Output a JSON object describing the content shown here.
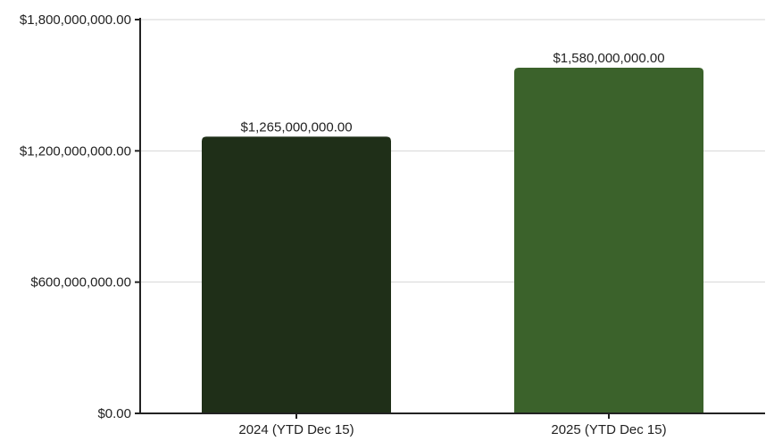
{
  "chart_data": {
    "type": "bar",
    "categories": [
      "2024 (YTD Dec 15)",
      "2025 (YTD Dec 15)"
    ],
    "values": [
      1265000000,
      1580000000
    ],
    "value_labels": [
      "$1,265,000,000.00",
      "$1,580,000,000.00"
    ],
    "bar_colors": [
      "#1f2f18",
      "#3b622b"
    ],
    "ylim": [
      0,
      1800000000
    ],
    "y_ticks": [
      0,
      600000000,
      1200000000,
      1800000000
    ],
    "y_tick_labels": [
      "$0.00",
      "$600,000,000.00",
      "$1,200,000,000.00",
      "$1,800,000,000.00"
    ],
    "grid": true,
    "legend": "none",
    "title": "",
    "xlabel": "",
    "ylabel": ""
  }
}
